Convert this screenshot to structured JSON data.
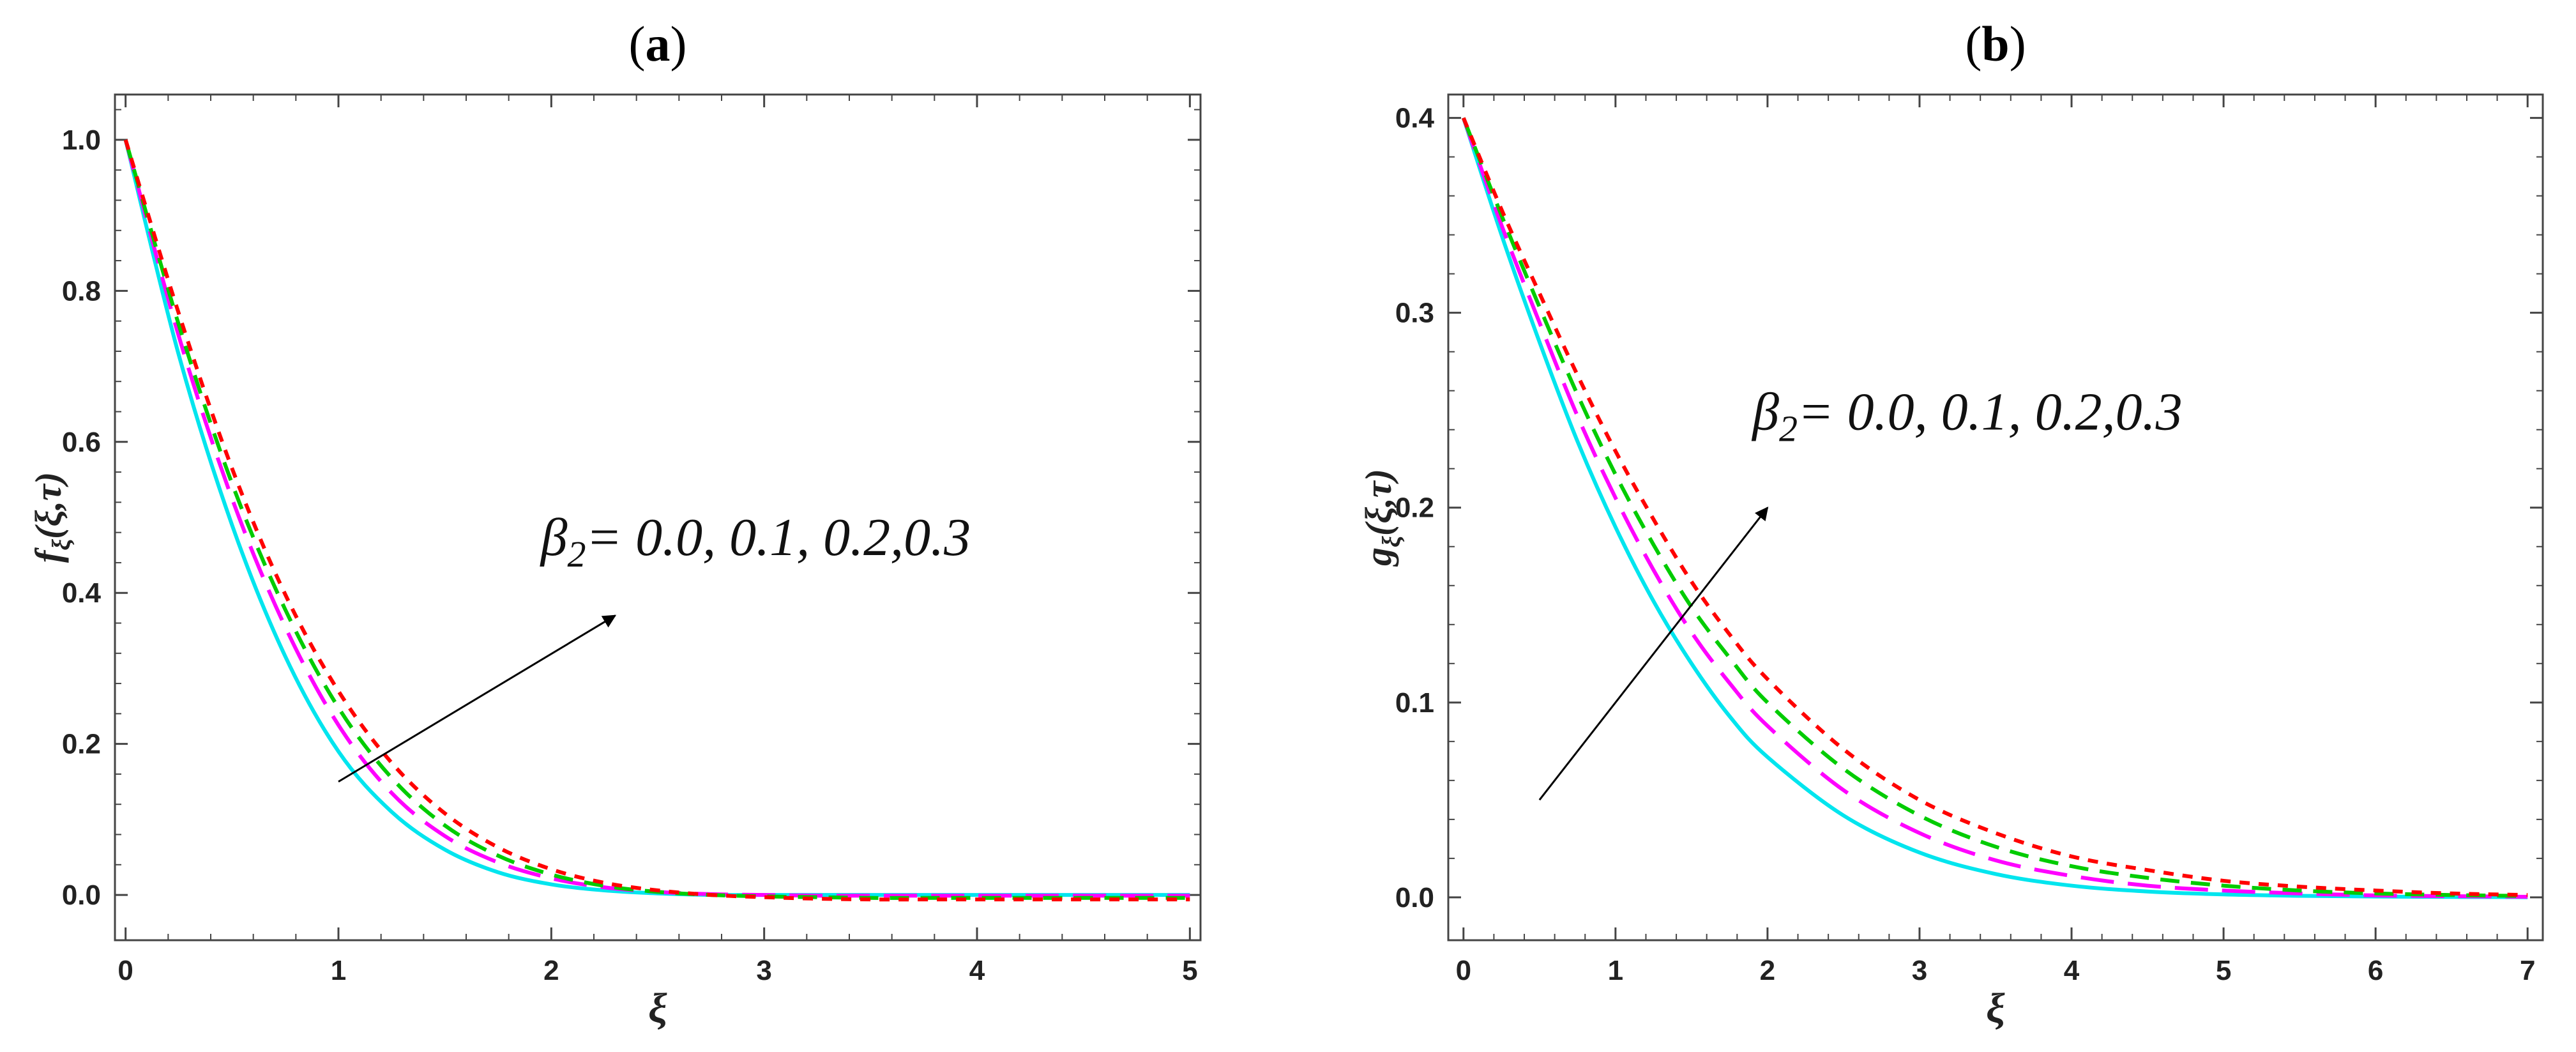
{
  "chart_data": [
    {
      "type": "line",
      "panel_label": "a",
      "xlabel": "ξ",
      "ylabel": "fξ(ξ,τ)",
      "ylabel_main": "f",
      "ylabel_sub": "ξ",
      "ylabel_args": "(ξ,τ)",
      "xlim": [
        -0.05,
        5.05
      ],
      "ylim": [
        -0.06,
        1.06
      ],
      "xticks": [
        0,
        1,
        2,
        3,
        4,
        5
      ],
      "yticks": [
        0.0,
        0.2,
        0.4,
        0.6,
        0.8,
        1.0
      ],
      "xtick_labels": [
        "0",
        "1",
        "2",
        "3",
        "4",
        "5"
      ],
      "ytick_labels": [
        "0.0",
        "0.2",
        "0.4",
        "0.6",
        "0.8",
        "1.0"
      ],
      "annotation": {
        "symbol": "β",
        "subscript": "2",
        "text": "= 0.0, 0.1, 0.2,0.3",
        "arrow_from": [
          1.0,
          0.15
        ],
        "arrow_to": [
          2.3,
          0.37
        ],
        "text_at": [
          1.95,
          0.45
        ]
      },
      "series": [
        {
          "name": "β2 = 0.0",
          "color": "#00e5ee",
          "dash": "solid",
          "x": [
            0,
            0.25,
            0.5,
            0.75,
            1.0,
            1.25,
            1.5,
            1.75,
            2.0,
            2.25,
            2.5,
            2.75,
            3.0,
            3.25,
            3.5,
            3.75,
            4.0,
            4.25,
            4.5,
            4.75,
            5.0
          ],
          "y": [
            1.0,
            0.715,
            0.49,
            0.316,
            0.19,
            0.11,
            0.06,
            0.03,
            0.014,
            0.006,
            0.002,
            0.0,
            0.0,
            0.0,
            0.0,
            0.0,
            0.0,
            0.0,
            0.0,
            0.0,
            0.0
          ]
        },
        {
          "name": "β2 = 0.1",
          "color": "#ff00ff",
          "dash": "long",
          "x": [
            0,
            0.25,
            0.5,
            0.75,
            1.0,
            1.25,
            1.5,
            1.75,
            2.0,
            2.25,
            2.5,
            2.75,
            3.0,
            3.25,
            3.5,
            3.75,
            4.0,
            4.25,
            4.5,
            4.75,
            5.0
          ],
          "y": [
            1.0,
            0.74,
            0.525,
            0.355,
            0.225,
            0.135,
            0.078,
            0.043,
            0.022,
            0.01,
            0.004,
            0.001,
            0.0,
            -0.001,
            -0.001,
            -0.001,
            -0.001,
            -0.001,
            -0.001,
            -0.001,
            -0.001
          ]
        },
        {
          "name": "β2 = 0.2",
          "color": "#00cc00",
          "dash": "medium",
          "x": [
            0,
            0.25,
            0.5,
            0.75,
            1.0,
            1.25,
            1.5,
            1.75,
            2.0,
            2.25,
            2.5,
            2.75,
            3.0,
            3.25,
            3.5,
            3.75,
            4.0,
            4.25,
            4.5,
            4.75,
            5.0
          ],
          "y": [
            1.0,
            0.755,
            0.545,
            0.378,
            0.248,
            0.155,
            0.092,
            0.052,
            0.027,
            0.012,
            0.004,
            0.0,
            -0.002,
            -0.003,
            -0.004,
            -0.004,
            -0.004,
            -0.004,
            -0.004,
            -0.004,
            -0.004
          ]
        },
        {
          "name": "β2 = 0.3",
          "color": "#ff0000",
          "dash": "short",
          "x": [
            0,
            0.25,
            0.5,
            0.75,
            1.0,
            1.25,
            1.5,
            1.75,
            2.0,
            2.25,
            2.5,
            2.75,
            3.0,
            3.25,
            3.5,
            3.75,
            4.0,
            4.25,
            4.5,
            4.75,
            5.0
          ],
          "y": [
            1.0,
            0.77,
            0.565,
            0.398,
            0.27,
            0.175,
            0.108,
            0.063,
            0.034,
            0.016,
            0.006,
            0.0,
            -0.003,
            -0.005,
            -0.006,
            -0.006,
            -0.006,
            -0.006,
            -0.006,
            -0.006,
            -0.006
          ]
        }
      ]
    },
    {
      "type": "line",
      "panel_label": "b",
      "xlabel": "ξ",
      "ylabel": "gξ(ξ,τ)",
      "ylabel_main": "g",
      "ylabel_sub": "ξ",
      "ylabel_args": "(ξ,τ)",
      "xlim": [
        -0.1,
        7.1
      ],
      "ylim": [
        -0.022,
        0.412
      ],
      "xticks": [
        0,
        1,
        2,
        3,
        4,
        5,
        6,
        7
      ],
      "yticks": [
        0.0,
        0.1,
        0.2,
        0.3,
        0.4
      ],
      "xtick_labels": [
        "0",
        "1",
        "2",
        "3",
        "4",
        "5",
        "6",
        "7"
      ],
      "ytick_labels": [
        "0.0",
        "0.1",
        "0.2",
        "0.3",
        "0.4"
      ],
      "annotation": {
        "symbol": "β",
        "subscript": "2",
        "text": "= 0.0, 0.1, 0.2,0.3",
        "arrow_from": [
          0.5,
          0.05
        ],
        "arrow_to": [
          2.0,
          0.2
        ],
        "text_at": [
          1.9,
          0.24
        ]
      },
      "series": [
        {
          "name": "β2 = 0.0",
          "color": "#00e5ee",
          "dash": "solid",
          "x": [
            0,
            0.25,
            0.5,
            0.75,
            1.0,
            1.25,
            1.5,
            1.75,
            2.0,
            2.5,
            3.0,
            3.5,
            4.0,
            4.5,
            5.0,
            5.5,
            6.0,
            6.5,
            7.0
          ],
          "y": [
            0.4,
            0.34,
            0.285,
            0.234,
            0.19,
            0.152,
            0.12,
            0.093,
            0.072,
            0.042,
            0.023,
            0.012,
            0.006,
            0.003,
            0.0015,
            0.0008,
            0.0004,
            0.0002,
            0.0001
          ]
        },
        {
          "name": "β2 = 0.1",
          "color": "#ff00ff",
          "dash": "long",
          "x": [
            0,
            0.25,
            0.5,
            0.75,
            1.0,
            1.25,
            1.5,
            1.75,
            2.0,
            2.5,
            3.0,
            3.5,
            4.0,
            4.5,
            5.0,
            5.5,
            6.0,
            6.5,
            7.0
          ],
          "y": [
            0.4,
            0.345,
            0.295,
            0.247,
            0.205,
            0.168,
            0.136,
            0.11,
            0.088,
            0.055,
            0.033,
            0.019,
            0.011,
            0.006,
            0.0035,
            0.002,
            0.001,
            0.0006,
            0.0003
          ]
        },
        {
          "name": "β2 = 0.2",
          "color": "#00cc00",
          "dash": "medium",
          "x": [
            0,
            0.25,
            0.5,
            0.75,
            1.0,
            1.25,
            1.5,
            1.75,
            2.0,
            2.5,
            3.0,
            3.5,
            4.0,
            4.5,
            5.0,
            5.5,
            6.0,
            6.5,
            7.0
          ],
          "y": [
            0.4,
            0.35,
            0.303,
            0.258,
            0.217,
            0.181,
            0.149,
            0.123,
            0.1,
            0.066,
            0.042,
            0.026,
            0.016,
            0.01,
            0.006,
            0.0035,
            0.002,
            0.0012,
            0.0007
          ]
        },
        {
          "name": "β2 = 0.3",
          "color": "#ff0000",
          "dash": "short",
          "x": [
            0,
            0.25,
            0.5,
            0.75,
            1.0,
            1.25,
            1.5,
            1.75,
            2.0,
            2.5,
            3.0,
            3.5,
            4.0,
            4.5,
            5.0,
            5.5,
            6.0,
            6.5,
            7.0
          ],
          "y": [
            0.4,
            0.353,
            0.31,
            0.268,
            0.229,
            0.194,
            0.162,
            0.135,
            0.112,
            0.076,
            0.05,
            0.033,
            0.021,
            0.014,
            0.0085,
            0.0055,
            0.0035,
            0.002,
            0.0012
          ]
        }
      ]
    }
  ]
}
